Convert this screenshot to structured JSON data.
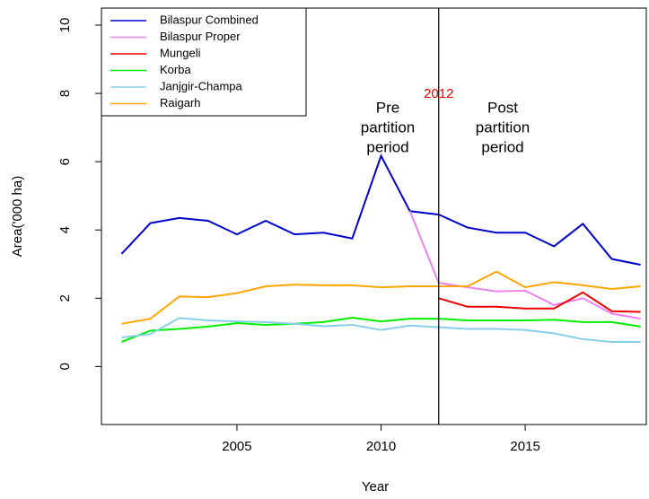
{
  "chart_data": {
    "type": "line",
    "x_label": "Year",
    "y_label": "Area('000 ha)",
    "x": [
      2001,
      2002,
      2003,
      2004,
      2005,
      2006,
      2007,
      2008,
      2009,
      2010,
      2011,
      2012,
      2013,
      2014,
      2015,
      2016,
      2017,
      2018,
      2019
    ],
    "series": [
      {
        "name": "Bilaspur Combined",
        "color": "#0000cd",
        "values": [
          3.3,
          4.2,
          4.35,
          4.27,
          3.87,
          4.27,
          3.87,
          3.92,
          3.75,
          6.17,
          4.55,
          4.45,
          4.07,
          3.92,
          3.92,
          3.52,
          4.18,
          3.15,
          2.98
        ]
      },
      {
        "name": "Bilaspur Proper",
        "color": "#ee82ee",
        "values": [
          null,
          null,
          null,
          null,
          null,
          null,
          null,
          null,
          null,
          null,
          4.55,
          2.45,
          2.32,
          2.2,
          2.22,
          1.8,
          2.0,
          1.55,
          1.4
        ]
      },
      {
        "name": "Mungeli",
        "color": "#ee0000",
        "values": [
          null,
          null,
          null,
          null,
          null,
          null,
          null,
          null,
          null,
          null,
          null,
          2.0,
          1.75,
          1.75,
          1.7,
          1.7,
          2.17,
          1.62,
          1.6
        ]
      },
      {
        "name": "Korba",
        "color": "#00ee00",
        "values": [
          0.72,
          1.05,
          1.1,
          1.17,
          1.27,
          1.22,
          1.25,
          1.3,
          1.43,
          1.32,
          1.4,
          1.4,
          1.35,
          1.35,
          1.35,
          1.37,
          1.3,
          1.3,
          1.17
        ]
      },
      {
        "name": "Janjgir-Champa",
        "color": "#87ceeb",
        "values": [
          0.85,
          0.95,
          1.42,
          1.35,
          1.32,
          1.3,
          1.25,
          1.18,
          1.22,
          1.07,
          1.2,
          1.15,
          1.1,
          1.1,
          1.07,
          0.97,
          0.8,
          0.72,
          0.72
        ]
      },
      {
        "name": "Raigarh",
        "color": "#ffa500",
        "values": [
          1.25,
          1.4,
          2.05,
          2.03,
          2.15,
          2.35,
          2.4,
          2.38,
          2.38,
          2.32,
          2.35,
          2.35,
          2.35,
          2.78,
          2.32,
          2.47,
          2.38,
          2.27,
          2.35
        ]
      }
    ],
    "xlim": [
      2000.3,
      2019.2
    ],
    "xticks": [
      2005,
      2010,
      2015
    ],
    "ylim": [
      -1.7,
      10.5
    ],
    "yticks": [
      0,
      2,
      4,
      6,
      8,
      10
    ],
    "vline": 2012,
    "vline_label": {
      "text": "2012",
      "color": "#ee0000"
    },
    "annotations": [
      {
        "lines": [
          "Pre",
          "partition",
          "period"
        ]
      },
      {
        "lines": [
          "Post",
          "partition",
          "period"
        ]
      }
    ],
    "legend": "top-left"
  }
}
